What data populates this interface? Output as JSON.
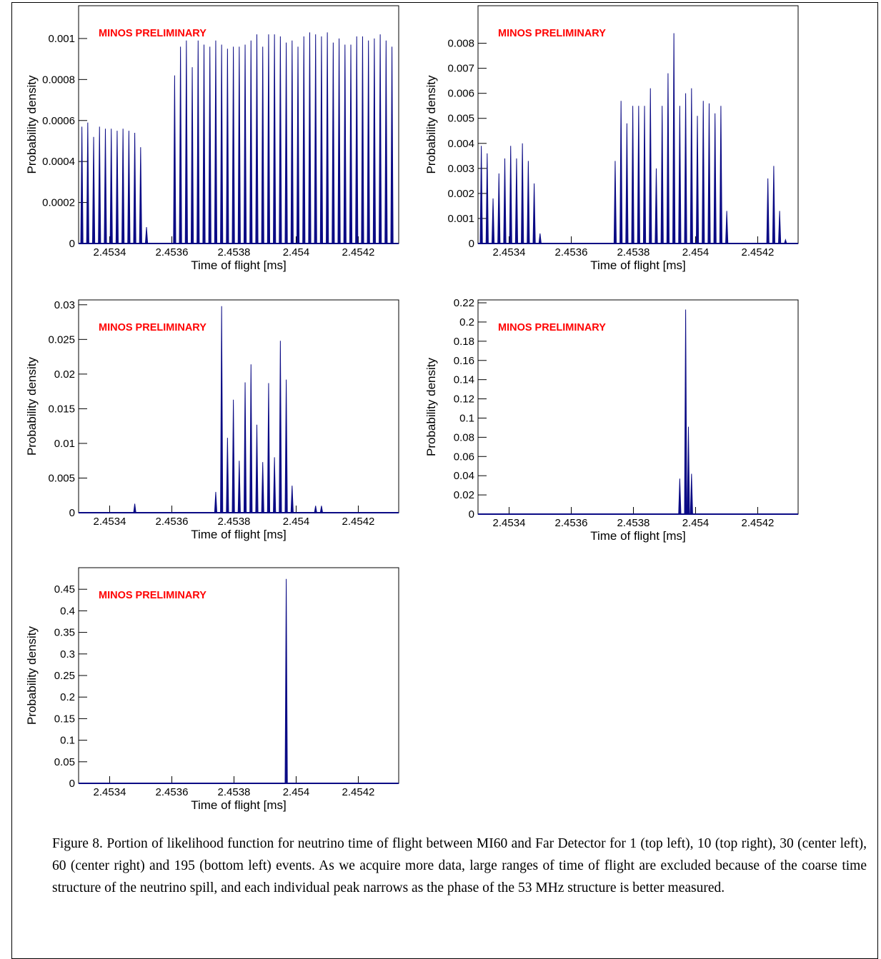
{
  "chart_data": [
    {
      "type": "spike",
      "annotation": "MINOS PRELIMINARY",
      "x_label": "Time of flight [ms]",
      "y_label": "Probability density",
      "color": "#0b0b85",
      "x": [
        2.4533106,
        2.4533295,
        2.4533484,
        2.4533673,
        2.4533862,
        2.4534051,
        2.453424,
        2.4534429,
        2.4534618,
        2.4534807,
        2.4534996,
        2.4535185,
        2.453609,
        2.4536279,
        2.4536468,
        2.4536657,
        2.4536846,
        2.4537035,
        2.4537224,
        2.4537413,
        2.4537602,
        2.4537791,
        2.453798,
        2.4538169,
        2.4538358,
        2.4538547,
        2.4538736,
        2.4538925,
        2.4539114,
        2.4539303,
        2.4539492,
        2.4539681,
        2.453987,
        2.4540059,
        2.4540248,
        2.4540437,
        2.4540626,
        2.4540815,
        2.4541004,
        2.4541193,
        2.4541382,
        2.4541571,
        2.454176,
        2.4541949,
        2.4542138,
        2.4542327,
        2.4542516,
        2.4542705,
        2.4542894,
        2.4543083
      ],
      "values": [
        0.00057,
        0.00059,
        0.00052,
        0.00057,
        0.00056,
        0.00056,
        0.00055,
        0.00056,
        0.00055,
        0.00054,
        0.00047,
        8e-05,
        0.00082,
        0.00096,
        0.00099,
        0.00086,
        0.00099,
        0.00097,
        0.00096,
        0.00099,
        0.00097,
        0.00095,
        0.00096,
        0.00096,
        0.00097,
        0.00099,
        0.00102,
        0.00096,
        0.00102,
        0.00102,
        0.00101,
        0.00098,
        0.00099,
        0.00096,
        0.00101,
        0.00103,
        0.00102,
        0.00101,
        0.00103,
        0.00098,
        0.001,
        0.00097,
        0.00097,
        0.00101,
        0.00101,
        0.00099,
        0.001,
        0.00102,
        0.00099,
        0.00096
      ],
      "xlim": [
        2.4533,
        2.45433
      ],
      "ylim": [
        0,
        0.00116
      ],
      "xticks": [
        2.4534,
        2.4536,
        2.4538,
        2.454,
        2.4542
      ],
      "yticks": [
        0,
        0.0002,
        0.0004,
        0.0006,
        0.0008,
        0.001
      ]
    },
    {
      "type": "spike",
      "annotation": "MINOS PRELIMINARY",
      "x_label": "Time of flight [ms]",
      "y_label": "Probability density",
      "color": "#0b0b85",
      "x": [
        2.4533106,
        2.4533295,
        2.4533484,
        2.4533673,
        2.4533862,
        2.4534051,
        2.453424,
        2.4534429,
        2.4534618,
        2.4534807,
        2.4534996,
        2.4537413,
        2.4537602,
        2.4537791,
        2.453798,
        2.4538169,
        2.4538358,
        2.4538547,
        2.4538736,
        2.4538925,
        2.4539114,
        2.4539303,
        2.4539492,
        2.4539681,
        2.453987,
        2.4540059,
        2.4540248,
        2.4540437,
        2.4540626,
        2.4540815,
        2.4541004,
        2.4542327,
        2.4542516,
        2.4542705,
        2.4542894
      ],
      "values": [
        0.0039,
        0.0036,
        0.0018,
        0.0028,
        0.0034,
        0.0039,
        0.0034,
        0.004,
        0.0033,
        0.0024,
        0.0004,
        0.0033,
        0.0057,
        0.0048,
        0.0055,
        0.0055,
        0.0055,
        0.0062,
        0.003,
        0.0055,
        0.0068,
        0.0084,
        0.0055,
        0.006,
        0.0062,
        0.0051,
        0.0057,
        0.0056,
        0.0052,
        0.0055,
        0.0013,
        0.0026,
        0.0031,
        0.0013,
        0.00015
      ],
      "xlim": [
        2.4533,
        2.45433
      ],
      "ylim": [
        0,
        0.0095
      ],
      "xticks": [
        2.4534,
        2.4536,
        2.4538,
        2.454,
        2.4542
      ],
      "yticks": [
        0,
        0.001,
        0.002,
        0.003,
        0.004,
        0.005,
        0.006,
        0.007,
        0.008
      ]
    },
    {
      "type": "spike",
      "annotation": "MINOS PRELIMINARY",
      "x_label": "Time of flight [ms]",
      "y_label": "Probability density",
      "color": "#0b0b85",
      "x": [
        2.4534807,
        2.4537413,
        2.4537602,
        2.4537791,
        2.453798,
        2.4538169,
        2.4538358,
        2.4538547,
        2.4538736,
        2.4538925,
        2.4539114,
        2.4539303,
        2.4539492,
        2.4539681,
        2.453987,
        2.4540626,
        2.4540815
      ],
      "values": [
        0.0013,
        0.003,
        0.0298,
        0.0108,
        0.0163,
        0.0075,
        0.0188,
        0.0214,
        0.0127,
        0.0073,
        0.0187,
        0.008,
        0.0248,
        0.0192,
        0.0039,
        0.001,
        0.001
      ],
      "xlim": [
        2.4533,
        2.45433
      ],
      "ylim": [
        0,
        0.0307
      ],
      "xticks": [
        2.4534,
        2.4536,
        2.4538,
        2.454,
        2.4542
      ],
      "yticks": [
        0,
        0.005,
        0.01,
        0.015,
        0.02,
        0.025,
        0.03
      ]
    },
    {
      "type": "spike",
      "annotation": "MINOS PRELIMINARY",
      "x_label": "Time of flight [ms]",
      "y_label": "Probability density",
      "color": "#0b0b85",
      "x": [
        2.4539492,
        2.4539681,
        2.453977,
        2.453987
      ],
      "values": [
        0.037,
        0.213,
        0.091,
        0.042
      ],
      "xlim": [
        2.4533,
        2.45433
      ],
      "ylim": [
        0,
        0.223
      ],
      "xticks": [
        2.4534,
        2.4536,
        2.4538,
        2.454,
        2.4542
      ],
      "yticks": [
        0,
        0.02,
        0.04,
        0.06,
        0.08,
        0.1,
        0.12,
        0.14,
        0.16,
        0.18,
        0.2,
        0.22
      ]
    },
    {
      "type": "spike",
      "annotation": "MINOS PRELIMINARY",
      "x_label": "Time of flight [ms]",
      "y_label": "Probability density",
      "color": "#0b0b85",
      "x": [
        2.4539681
      ],
      "values": [
        0.474
      ],
      "xlim": [
        2.4533,
        2.45433
      ],
      "ylim": [
        0,
        0.5
      ],
      "xticks": [
        2.4534,
        2.4536,
        2.4538,
        2.454,
        2.4542
      ],
      "yticks": [
        0,
        0.05,
        0.1,
        0.15,
        0.2,
        0.25,
        0.3,
        0.35,
        0.4,
        0.45
      ]
    }
  ],
  "caption": "Figure 8. Portion of likelihood function for neutrino time of flight between MI60 and Far Detector for 1 (top left), 10 (top right), 30 (center left), 60 (center right) and 195 (bottom left) events. As we acquire more data, large ranges of  time of flight are excluded because of the coarse time structure of the neutrino spill, and each individual peak narrows as the phase of the 53 MHz structure is better measured."
}
